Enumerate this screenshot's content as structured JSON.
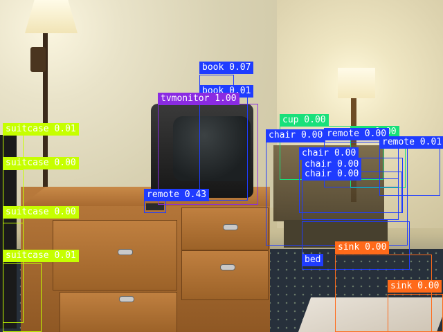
{
  "detections": [
    {
      "label": "book 0.07",
      "color": "#1f3cff",
      "text_color": "#ffffff"
    },
    {
      "label": "book 0.01",
      "color": "#1f3cff",
      "text_color": "#ffffff"
    },
    {
      "label": "tvmonitor 1.00",
      "color": "#8a2be2",
      "text_color": "#ffffff"
    },
    {
      "label": "remote 0.43",
      "color": "#1f3cff",
      "text_color": "#ffffff"
    },
    {
      "label": "suitcase 0.01",
      "color": "#c6ff00",
      "text_color": "#ffffff"
    },
    {
      "label": "suitcase 0.00",
      "color": "#c6ff00",
      "text_color": "#ffffff"
    },
    {
      "label": "suitcase 0.00",
      "color": "#c6ff00",
      "text_color": "#ffffff"
    },
    {
      "label": "suitcase 0.01",
      "color": "#c6ff00",
      "text_color": "#ffffff"
    },
    {
      "label": "cup 0.00",
      "color": "#19e07a",
      "text_color": "#ffffff"
    },
    {
      "label": "cup 0.00",
      "color": "#19e07a",
      "text_color": "#ffffff"
    },
    {
      "label": "chair 0.00",
      "color": "#1f3cff",
      "text_color": "#ffffff"
    },
    {
      "label": "chair 0.00",
      "color": "#1f3cff",
      "text_color": "#ffffff"
    },
    {
      "label": "chair 0.00",
      "color": "#1f3cff",
      "text_color": "#ffffff"
    },
    {
      "label": "chair 0.00",
      "color": "#1f3cff",
      "text_color": "#ffffff"
    },
    {
      "label": "remote 0.00",
      "color": "#1f3cff",
      "text_color": "#ffffff"
    },
    {
      "label": "remote 0.01",
      "color": "#1f3cff",
      "text_color": "#ffffff"
    },
    {
      "label": "bed",
      "color": "#1f3cff",
      "text_color": "#ffffff"
    },
    {
      "label": "sink 0.00",
      "color": "#ff6a1a",
      "text_color": "#ffffff"
    },
    {
      "label": "sink 0.00",
      "color": "#ff6a1a",
      "text_color": "#ffffff"
    }
  ]
}
